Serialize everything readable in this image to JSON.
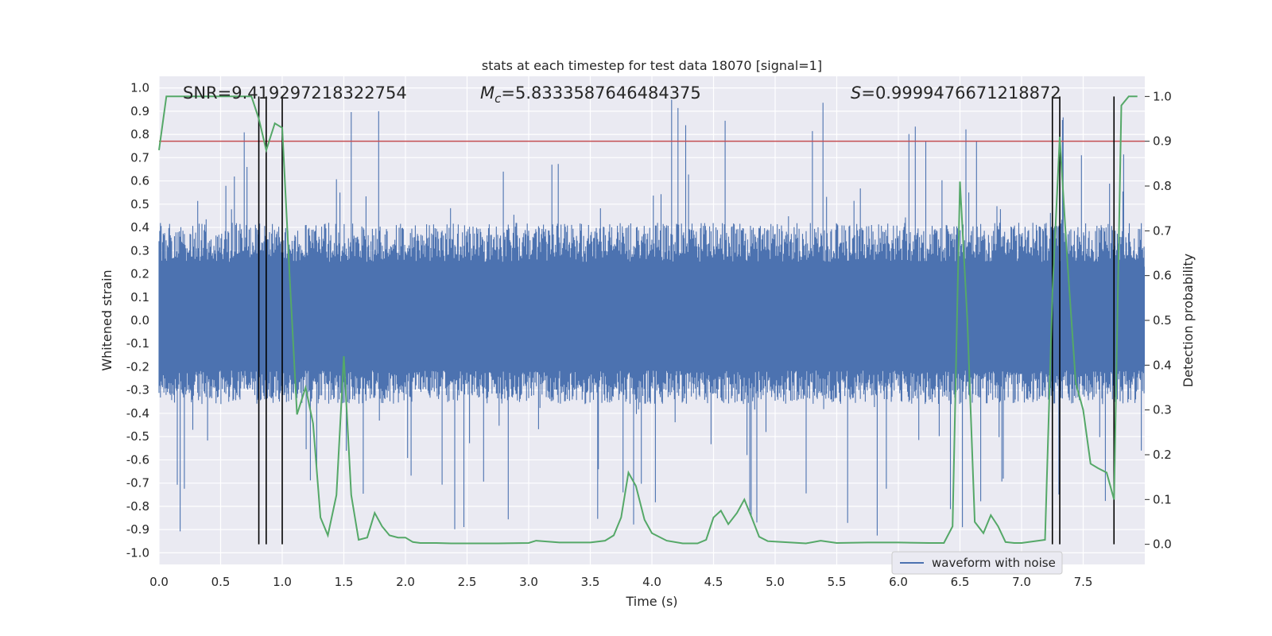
{
  "chart_data": {
    "type": "line",
    "title": "stats at each timestep for test data 18070 [signal=1]",
    "xlabel": "Time (s)",
    "ylabel": "Whitened strain",
    "ylabel_right": "Detection probability",
    "xlim": [
      0.0,
      8.0
    ],
    "ylim": [
      -1.05,
      1.05
    ],
    "ylim_right": [
      -0.045,
      1.045
    ],
    "x_ticks": [
      "0.0",
      "0.5",
      "1.0",
      "1.5",
      "2.0",
      "2.5",
      "3.0",
      "3.5",
      "4.0",
      "4.5",
      "5.0",
      "5.5",
      "6.0",
      "6.5",
      "7.0",
      "7.5"
    ],
    "y_ticks": [
      "1.0",
      "0.9",
      "0.8",
      "0.7",
      "0.6",
      "0.5",
      "0.4",
      "0.3",
      "0.2",
      "0.1",
      "0.0",
      "-0.1",
      "-0.2",
      "-0.3",
      "-0.4",
      "-0.5",
      "-0.6",
      "-0.7",
      "-0.8",
      "-0.9",
      "-1.0"
    ],
    "y_ticks_right": [
      "1.0",
      "0.9",
      "0.8",
      "0.7",
      "0.6",
      "0.5",
      "0.4",
      "0.3",
      "0.2",
      "0.1",
      "0.0"
    ],
    "annotations": {
      "snr": "SNR=9.419297218322754",
      "mc_symbol": "M",
      "mc_sub": "c",
      "mc_value": "=5.8333587646484375",
      "s_symbol": "S",
      "s_value": "=0.9999476671218872"
    },
    "legend": {
      "label": "waveform with noise",
      "position": "lower right"
    },
    "threshold_line": {
      "value": 0.9,
      "axis": "right",
      "color": "#c44e52"
    },
    "vertical_markers_s": [
      0.81,
      0.87,
      1.0,
      7.25,
      7.31,
      7.75
    ],
    "series": [
      {
        "name": "waveform with noise",
        "color": "#4c72b0",
        "axis": "left",
        "duration_s": 8.0,
        "core_envelope": [
          -0.36,
          0.42
        ],
        "peak_range": [
          -0.93,
          0.97
        ],
        "description_note": "dense noisy strain waveform"
      },
      {
        "name": "detection probability",
        "color": "#55a868",
        "axis": "right",
        "x": [
          0.0,
          0.06,
          0.75,
          0.81,
          0.87,
          0.94,
          1.0,
          1.06,
          1.12,
          1.19,
          1.25,
          1.31,
          1.37,
          1.44,
          1.5,
          1.56,
          1.62,
          1.69,
          1.75,
          1.81,
          1.87,
          1.94,
          2.0,
          2.06,
          2.12,
          2.25,
          2.37,
          2.5,
          2.75,
          3.0,
          3.06,
          3.25,
          3.5,
          3.62,
          3.69,
          3.75,
          3.81,
          3.87,
          3.94,
          4.0,
          4.12,
          4.25,
          4.37,
          4.44,
          4.5,
          4.56,
          4.62,
          4.69,
          4.75,
          4.81,
          4.87,
          4.94,
          5.0,
          5.25,
          5.37,
          5.5,
          5.75,
          6.0,
          6.25,
          6.37,
          6.44,
          6.5,
          6.56,
          6.62,
          6.69,
          6.75,
          6.81,
          6.87,
          6.94,
          7.0,
          7.19,
          7.25,
          7.31,
          7.37,
          7.44,
          7.5,
          7.56,
          7.62,
          7.69,
          7.75,
          7.81,
          7.87,
          7.94
        ],
        "values": [
          0.88,
          1.0,
          1.0,
          0.95,
          0.88,
          0.94,
          0.93,
          0.6,
          0.29,
          0.35,
          0.27,
          0.06,
          0.02,
          0.11,
          0.42,
          0.11,
          0.01,
          0.015,
          0.07,
          0.04,
          0.02,
          0.015,
          0.015,
          0.005,
          0.003,
          0.003,
          0.002,
          0.002,
          0.002,
          0.003,
          0.008,
          0.004,
          0.004,
          0.008,
          0.02,
          0.06,
          0.16,
          0.13,
          0.055,
          0.025,
          0.008,
          0.002,
          0.002,
          0.01,
          0.06,
          0.075,
          0.045,
          0.07,
          0.1,
          0.06,
          0.017,
          0.007,
          0.006,
          0.002,
          0.008,
          0.003,
          0.004,
          0.004,
          0.003,
          0.003,
          0.04,
          0.81,
          0.5,
          0.05,
          0.025,
          0.065,
          0.04,
          0.005,
          0.003,
          0.003,
          0.01,
          0.56,
          0.91,
          0.64,
          0.36,
          0.3,
          0.18,
          0.17,
          0.16,
          0.1,
          0.98,
          1.0,
          1.0
        ]
      }
    ]
  }
}
